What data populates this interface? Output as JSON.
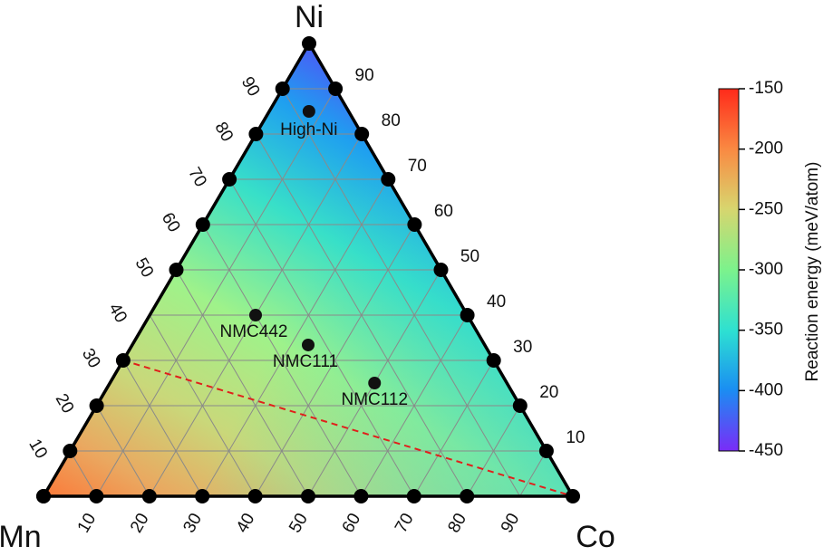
{
  "chart_data": {
    "type": "scatter",
    "subtype": "ternary",
    "vertex_labels": {
      "top": "Ni",
      "left": "Mn",
      "right": "Co"
    },
    "left_edge_tick_labels": [
      "10",
      "20",
      "30",
      "40",
      "50",
      "60",
      "70",
      "80",
      "90"
    ],
    "right_edge_tick_labels": [
      "90",
      "80",
      "70",
      "60",
      "50",
      "40",
      "30",
      "20",
      "10"
    ],
    "bottom_edge_tick_labels": [
      "10",
      "20",
      "30",
      "40",
      "50",
      "60",
      "70",
      "80",
      "90"
    ],
    "grid": true,
    "background_field": {
      "quantity": "Reaction energy",
      "unit": "meV/atom",
      "range": [
        -450,
        -150
      ],
      "colormap": "rainbow",
      "min_at": "Ni",
      "max_at": "Mn"
    },
    "points": [
      {
        "label": "High-Ni",
        "ni": 0.85,
        "co": 0.075,
        "mn": 0.075
      },
      {
        "label": "NMC442",
        "ni": 0.4,
        "co": 0.2,
        "mn": 0.4
      },
      {
        "label": "NMC111",
        "ni": 0.333,
        "co": 0.333,
        "mn": 0.333
      },
      {
        "label": "NMC112",
        "ni": 0.25,
        "co": 0.5,
        "mn": 0.25
      }
    ],
    "edge_markers": {
      "left": [
        0,
        0.1,
        0.2,
        0.3,
        0.5,
        0.6,
        0.7,
        0.8,
        0.9,
        1.0
      ],
      "right": [
        0.1,
        0.2,
        0.3,
        0.4,
        0.5,
        0.6,
        0.7,
        0.8,
        0.9
      ],
      "bottom": [
        0,
        0.1,
        0.2,
        0.3,
        0.4,
        0.5,
        0.6,
        0.7,
        0.8,
        1.0
      ]
    },
    "dashed_line": {
      "from": {
        "ni": 0.3,
        "co": 0,
        "mn": 0.7
      },
      "to": {
        "ni": 0,
        "co": 1,
        "mn": 0
      },
      "color": "#e0201b"
    },
    "colorbar": {
      "title": "Reaction energy (meV/atom)",
      "ticks": [
        "-150",
        "-200",
        "-250",
        "-300",
        "-350",
        "-400",
        "-450"
      ]
    }
  }
}
